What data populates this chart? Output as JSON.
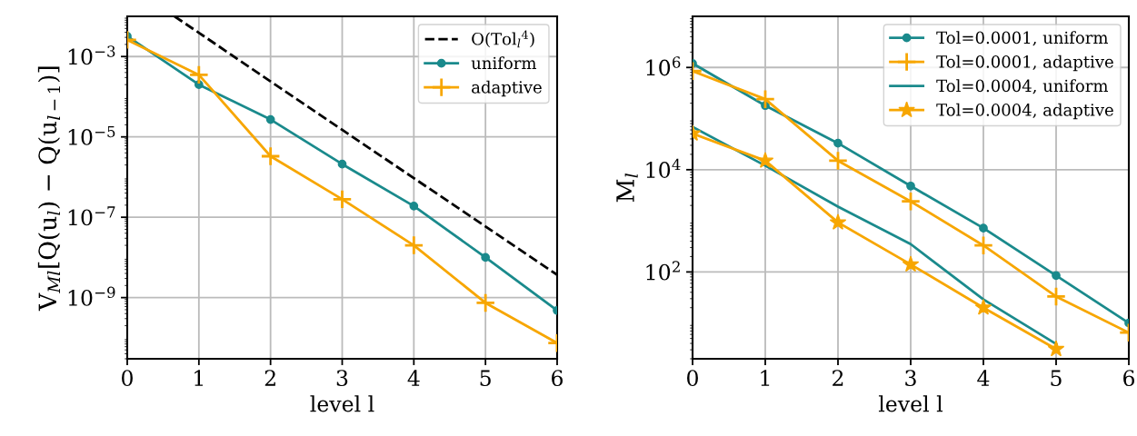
{
  "chart_data": [
    {
      "type": "line",
      "xlabel": "level l",
      "ylabel": "V$_{Ml}$[Q(u$_{l}$) − Q(u$_{l−1}$)]",
      "log": "y",
      "grid": true,
      "legend": "top right",
      "xlim": [
        0,
        6
      ],
      "xticks": [
        0,
        1,
        2,
        3,
        4,
        5,
        6
      ],
      "ylim": [
        3e-11,
        0.01
      ],
      "yticks": [
        {
          "value": 1e-09,
          "label": "10$^{−9}$"
        },
        {
          "value": 1e-07,
          "label": "10$^{−7}$"
        },
        {
          "value": 1e-05,
          "label": "10$^{−5}$"
        },
        {
          "value": 0.001,
          "label": "10$^{−3}$"
        }
      ],
      "series": [
        {
          "name": "O(Tol$_{l}$$^{4}$)",
          "color": "#000000",
          "marker": "none",
          "line_style": "dashed",
          "x": [
            0.66,
            1,
            2,
            3,
            4,
            5,
            6
          ],
          "values": [
            0.01,
            0.0039,
            0.00024,
            1.5e-05,
            9.4e-07,
            5.9e-08,
            3.7e-09
          ]
        },
        {
          "name": "uniform",
          "color": "#1a8a8c",
          "marker": "circle",
          "x": [
            0,
            1,
            2,
            3,
            4,
            5,
            6
          ],
          "values": [
            0.0032,
            0.0002,
            2.7e-05,
            2.1e-06,
            1.9e-07,
            1e-08,
            4.8e-10
          ]
        },
        {
          "name": "adaptive",
          "color": "#f7a600",
          "marker": "cross",
          "x": [
            0,
            1,
            2,
            3,
            4,
            5,
            6
          ],
          "values": [
            0.0026,
            0.00035,
            3.3e-06,
            2.8e-07,
            2e-08,
            7.4e-10,
            7.4e-11
          ]
        }
      ]
    },
    {
      "type": "line",
      "xlabel": "level l",
      "ylabel": "M$_{l}$",
      "log": "y",
      "grid": true,
      "legend": "top right",
      "xlim": [
        0,
        6
      ],
      "xticks": [
        0,
        1,
        2,
        3,
        4,
        5,
        6
      ],
      "ylim": [
        2,
        10000000.0
      ],
      "yticks": [
        {
          "value": 100,
          "label": "10$^{2}$"
        },
        {
          "value": 10000,
          "label": "10$^{4}$"
        },
        {
          "value": 1000000,
          "label": "10$^{6}$"
        }
      ],
      "series": [
        {
          "name": "Tol=0.0001, uniform",
          "color": "#1a8a8c",
          "marker": "circle",
          "x": [
            0,
            1,
            2,
            3,
            4,
            5,
            6
          ],
          "values": [
            1200000.0,
            180000.0,
            33000.0,
            4800,
            720,
            85,
            10
          ]
        },
        {
          "name": "Tol=0.0001, adaptive",
          "color": "#f7a600",
          "marker": "cross",
          "x": [
            0,
            1,
            2,
            3,
            4,
            5,
            6
          ],
          "values": [
            850000.0,
            240000.0,
            15000.0,
            2400,
            330,
            33,
            6.5
          ]
        },
        {
          "name": "Tol=0.0004, uniform",
          "color": "#1a8a8c",
          "marker": "none",
          "x": [
            0,
            1,
            2,
            3,
            4,
            5
          ],
          "values": [
            69000.0,
            12000.0,
            1900,
            350,
            29,
            3.9
          ]
        },
        {
          "name": "Tol=0.0004, adaptive",
          "color": "#f7a600",
          "marker": "star",
          "x": [
            0,
            1,
            2,
            3,
            4,
            5
          ],
          "values": [
            51000.0,
            15000.0,
            930,
            140,
            20,
            3.1
          ]
        }
      ]
    }
  ]
}
